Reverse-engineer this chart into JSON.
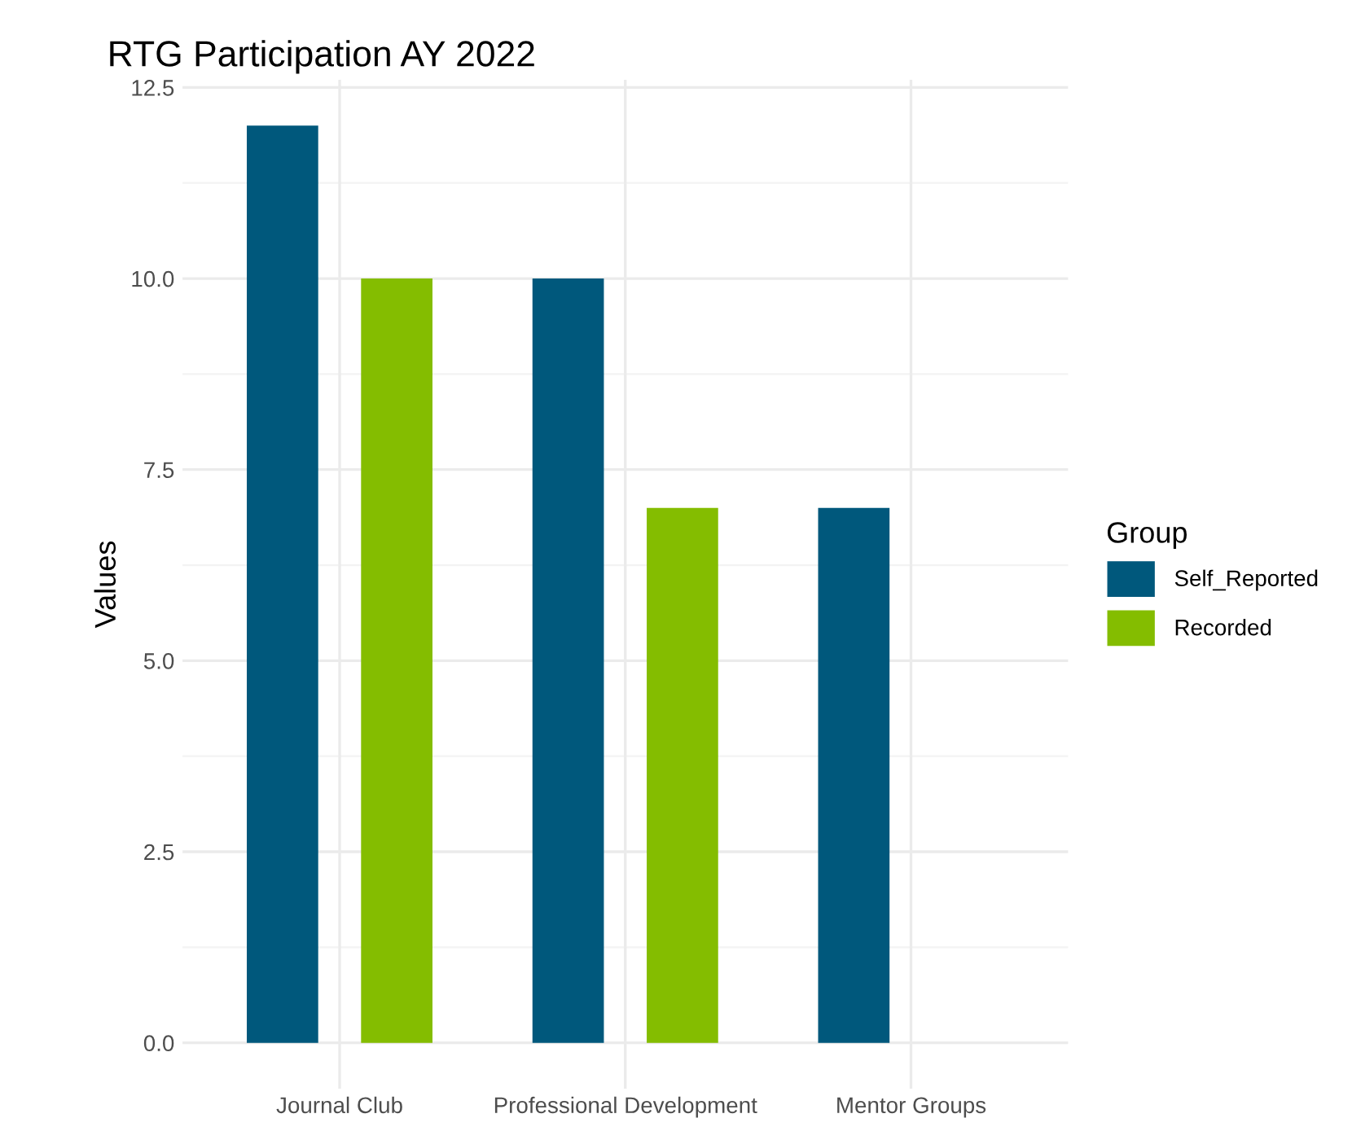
{
  "chart_data": {
    "type": "bar",
    "title": "RTG Participation AY 2022",
    "ylabel": "Values",
    "legend_title": "Group",
    "categories": [
      "Journal Club",
      "Professional Development",
      "Mentor Groups"
    ],
    "series": [
      {
        "name": "Self_Reported",
        "color": "#00587c",
        "values": [
          12,
          10,
          7
        ]
      },
      {
        "name": "Recorded",
        "color": "#84bd00",
        "values": [
          10,
          7,
          null
        ]
      }
    ],
    "ylim": [
      -0.6,
      12.6
    ],
    "yticks": [
      {
        "value": 0,
        "label": "0.0"
      },
      {
        "value": 2.5,
        "label": "2.5"
      },
      {
        "value": 5,
        "label": "5.0"
      },
      {
        "value": 7.5,
        "label": "7.5"
      },
      {
        "value": 10,
        "label": "10.0"
      },
      {
        "value": 12.5,
        "label": "12.5"
      }
    ],
    "grid": true,
    "legend": "right"
  }
}
